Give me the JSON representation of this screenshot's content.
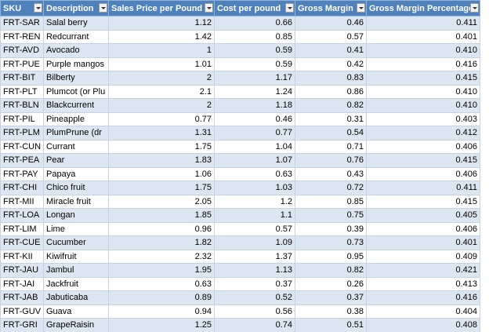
{
  "table": {
    "header": [
      "SKU",
      "Description",
      "Sales Price per Pound",
      "Cost per pound",
      "Gross Margin",
      "Gross Margin Percentage"
    ],
    "rows": [
      [
        "FRT-SAR",
        "Salal berry",
        "1.12",
        "0.66",
        "0.46",
        "0.411"
      ],
      [
        "FRT-REN",
        "Redcurrant",
        "1.42",
        "0.85",
        "0.57",
        "0.401"
      ],
      [
        "FRT-AVD",
        "Avocado",
        "1",
        "0.59",
        "0.41",
        "0.410"
      ],
      [
        "FRT-PUE",
        "Purple mangos",
        "1.01",
        "0.59",
        "0.42",
        "0.416"
      ],
      [
        "FRT-BIT",
        "Bilberty",
        "2",
        "1.17",
        "0.83",
        "0.415"
      ],
      [
        "FRT-PLT",
        "Plumcot (or Plu",
        "2.1",
        "1.24",
        "0.86",
        "0.410"
      ],
      [
        "FRT-BLN",
        "Blackcurrent",
        "2",
        "1.18",
        "0.82",
        "0.410"
      ],
      [
        "FRT-PIL",
        "Pineapple",
        "0.77",
        "0.46",
        "0.31",
        "0.403"
      ],
      [
        "FRT-PLM",
        "PlumPrune (dr",
        "1.31",
        "0.77",
        "0.54",
        "0.412"
      ],
      [
        "FRT-CUN",
        "Currant",
        "1.75",
        "1.04",
        "0.71",
        "0.406"
      ],
      [
        "FRT-PEA",
        "Pear",
        "1.83",
        "1.07",
        "0.76",
        "0.415"
      ],
      [
        "FRT-PAY",
        "Papaya",
        "1.06",
        "0.63",
        "0.43",
        "0.406"
      ],
      [
        "FRT-CHI",
        "Chico fruit",
        "1.75",
        "1.03",
        "0.72",
        "0.411"
      ],
      [
        "FRT-MII",
        "Miracle fruit",
        "2.05",
        "1.2",
        "0.85",
        "0.415"
      ],
      [
        "FRT-LOA",
        "Longan",
        "1.85",
        "1.1",
        "0.75",
        "0.405"
      ],
      [
        "FRT-LIM",
        "Lime",
        "0.96",
        "0.57",
        "0.39",
        "0.406"
      ],
      [
        "FRT-CUE",
        "Cucumber",
        "1.82",
        "1.09",
        "0.73",
        "0.401"
      ],
      [
        "FRT-KII",
        "Kiwifruit",
        "2.32",
        "1.37",
        "0.95",
        "0.409"
      ],
      [
        "FRT-JAU",
        "Jambul",
        "1.95",
        "1.13",
        "0.82",
        "0.421"
      ],
      [
        "FRT-JAI",
        "Jackfruit",
        "0.63",
        "0.37",
        "0.26",
        "0.413"
      ],
      [
        "FRT-JAB",
        "Jabuticaba",
        "0.89",
        "0.52",
        "0.37",
        "0.416"
      ],
      [
        "FRT-GUV",
        "Guava",
        "0.94",
        "0.56",
        "0.38",
        "0.404"
      ],
      [
        "FRT-GRI",
        "GrapeRaisin",
        "1.25",
        "0.74",
        "0.51",
        "0.408"
      ]
    ]
  }
}
